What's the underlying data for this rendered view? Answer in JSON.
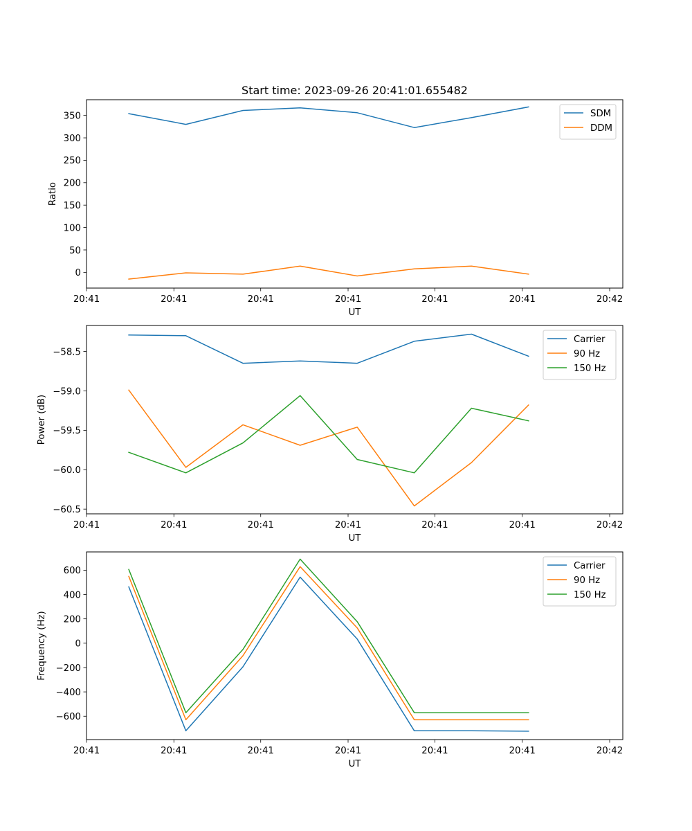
{
  "figure": {
    "title": "Start time: 2023-09-26 20:41:01.655482"
  },
  "colors": {
    "blue": "#1f77b4",
    "orange": "#ff7f0e",
    "green": "#2ca02c"
  },
  "chart_data": [
    {
      "type": "line",
      "title": "Start time: 2023-09-26 20:41:01.655482",
      "xlabel": "UT",
      "ylabel": "Ratio",
      "x_tick_labels": [
        "20:41",
        "20:41",
        "20:41",
        "20:41",
        "20:41",
        "20:41",
        "20:42"
      ],
      "x_index": [
        0,
        1,
        2,
        3,
        4,
        5,
        6,
        7
      ],
      "xlim": [
        -0.74,
        8.65
      ],
      "x_tick_positions": [
        -0.74,
        0.79,
        2.31,
        3.84,
        5.36,
        6.89,
        8.42
      ],
      "ylim": [
        -35,
        385
      ],
      "y_ticks": [
        0,
        50,
        100,
        150,
        200,
        250,
        300,
        350
      ],
      "y_tick_labels": [
        "0",
        "50",
        "100",
        "150",
        "200",
        "250",
        "300",
        "350"
      ],
      "legend": {
        "placement": "top-right",
        "entries": [
          "SDM",
          "DDM"
        ]
      },
      "series": [
        {
          "name": "SDM",
          "color": "#1f77b4",
          "values": [
            354,
            330,
            361,
            367,
            356,
            323,
            345,
            369
          ]
        },
        {
          "name": "DDM",
          "color": "#ff7f0e",
          "values": [
            -15,
            -1,
            -4,
            14,
            -8,
            8,
            14,
            -4
          ]
        }
      ]
    },
    {
      "type": "line",
      "title": "",
      "xlabel": "UT",
      "ylabel": "Power (dB)",
      "x_tick_labels": [
        "20:41",
        "20:41",
        "20:41",
        "20:41",
        "20:41",
        "20:41",
        "20:42"
      ],
      "x_index": [
        0,
        1,
        2,
        3,
        4,
        5,
        6,
        7
      ],
      "xlim": [
        -0.74,
        8.65
      ],
      "x_tick_positions": [
        -0.74,
        0.79,
        2.31,
        3.84,
        5.36,
        6.89,
        8.42
      ],
      "ylim": [
        -60.56,
        -58.17
      ],
      "y_ticks": [
        -60.5,
        -60.0,
        -59.5,
        -59.0,
        -58.5
      ],
      "y_tick_labels": [
        "−60.5",
        "−60.0",
        "−59.5",
        "−59.0",
        "−58.5"
      ],
      "legend": {
        "placement": "top-right",
        "entries": [
          "Carrier",
          "90 Hz",
          "150 Hz"
        ]
      },
      "series": [
        {
          "name": "Carrier",
          "color": "#1f77b4",
          "values": [
            -58.29,
            -58.3,
            -58.65,
            -58.62,
            -58.65,
            -58.37,
            -58.28,
            -58.56
          ]
        },
        {
          "name": "90 Hz",
          "color": "#ff7f0e",
          "values": [
            -58.99,
            -59.97,
            -59.43,
            -59.69,
            -59.46,
            -60.46,
            -59.91,
            -59.18
          ]
        },
        {
          "name": "150 Hz",
          "color": "#2ca02c",
          "values": [
            -59.78,
            -60.04,
            -59.66,
            -59.06,
            -59.87,
            -60.04,
            -59.22,
            -59.38
          ]
        }
      ]
    },
    {
      "type": "line",
      "title": "",
      "xlabel": "UT",
      "ylabel": "Frequency (Hz)",
      "x_tick_labels": [
        "20:41",
        "20:41",
        "20:41",
        "20:41",
        "20:41",
        "20:41",
        "20:42"
      ],
      "x_index": [
        0,
        1,
        2,
        3,
        4,
        5,
        6,
        7
      ],
      "xlim": [
        -0.74,
        8.65
      ],
      "x_tick_positions": [
        -0.74,
        0.79,
        2.31,
        3.84,
        5.36,
        6.89,
        8.42
      ],
      "ylim": [
        -792,
        750
      ],
      "y_ticks": [
        -600,
        -400,
        -200,
        0,
        200,
        400,
        600
      ],
      "y_tick_labels": [
        "−600",
        "−400",
        "−200",
        "0",
        "200",
        "400",
        "600"
      ],
      "legend": {
        "placement": "top-right",
        "entries": [
          "Carrier",
          "90 Hz",
          "150 Hz"
        ]
      },
      "series": [
        {
          "name": "Carrier",
          "color": "#1f77b4",
          "values": [
            463,
            -720,
            -194,
            543,
            34,
            -720,
            -720,
            -723
          ]
        },
        {
          "name": "90 Hz",
          "color": "#ff7f0e",
          "values": [
            549,
            -629,
            -103,
            629,
            126,
            -629,
            -629,
            -629
          ]
        },
        {
          "name": "150 Hz",
          "color": "#2ca02c",
          "values": [
            606,
            -571,
            -51,
            691,
            177,
            -571,
            -571,
            -571
          ]
        }
      ]
    }
  ]
}
